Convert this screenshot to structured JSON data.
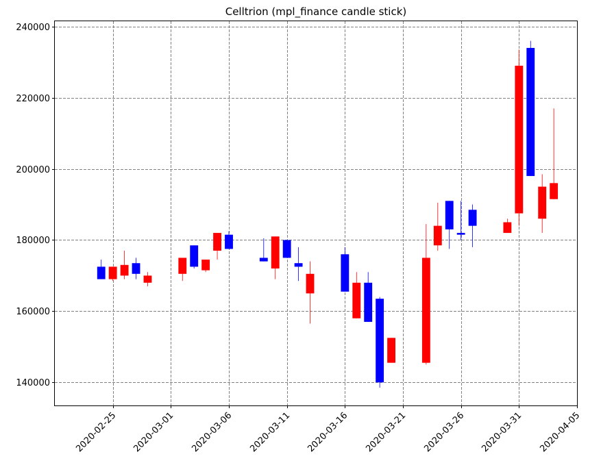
{
  "chart_data": {
    "type": "candlestick",
    "title": "Celltrion (mpl_finance candle stick)",
    "xlabel": "",
    "ylabel": "",
    "x_ticks": [
      "2020-02-25",
      "2020-03-01",
      "2020-03-06",
      "2020-03-11",
      "2020-03-16",
      "2020-03-21",
      "2020-03-26",
      "2020-03-31",
      "2020-04-05"
    ],
    "y_ticks": [
      "140000",
      "160000",
      "180000",
      "200000",
      "220000",
      "240000"
    ],
    "xlim": [
      "2020-02-20",
      "2020-04-05"
    ],
    "ylim": [
      133500,
      241500
    ],
    "grid": true,
    "colors": {
      "up": "#0000ff",
      "down": "#ff0000",
      "grid": "#808080"
    },
    "candles": [
      {
        "date": "2020-02-24",
        "open": 169000,
        "high": 174500,
        "low": 169000,
        "close": 172500
      },
      {
        "date": "2020-02-25",
        "open": 172500,
        "high": 172500,
        "low": 168500,
        "close": 169000
      },
      {
        "date": "2020-02-26",
        "open": 173000,
        "high": 177000,
        "low": 169000,
        "close": 170000
      },
      {
        "date": "2020-02-27",
        "open": 170500,
        "high": 175000,
        "low": 169000,
        "close": 173500
      },
      {
        "date": "2020-02-28",
        "open": 170000,
        "high": 171000,
        "low": 167000,
        "close": 168000
      },
      {
        "date": "2020-03-02",
        "open": 175000,
        "high": 175000,
        "low": 168500,
        "close": 170500
      },
      {
        "date": "2020-03-03",
        "open": 172500,
        "high": 178500,
        "low": 172000,
        "close": 178500
      },
      {
        "date": "2020-03-04",
        "open": 174500,
        "high": 174500,
        "low": 171000,
        "close": 171500
      },
      {
        "date": "2020-03-05",
        "open": 182000,
        "high": 182000,
        "low": 174500,
        "close": 177000
      },
      {
        "date": "2020-03-06",
        "open": 177500,
        "high": 182500,
        "low": 177500,
        "close": 181500
      },
      {
        "date": "2020-03-09",
        "open": 174000,
        "high": 180500,
        "low": 174000,
        "close": 175000
      },
      {
        "date": "2020-03-10",
        "open": 181000,
        "high": 181000,
        "low": 169000,
        "close": 172000
      },
      {
        "date": "2020-03-11",
        "open": 175000,
        "high": 180000,
        "low": 175000,
        "close": 180000
      },
      {
        "date": "2020-03-12",
        "open": 172500,
        "high": 178000,
        "low": 168500,
        "close": 173500
      },
      {
        "date": "2020-03-13",
        "open": 170500,
        "high": 174000,
        "low": 156500,
        "close": 165000
      },
      {
        "date": "2020-03-16",
        "open": 165500,
        "high": 178000,
        "low": 165500,
        "close": 176000
      },
      {
        "date": "2020-03-17",
        "open": 168000,
        "high": 171000,
        "low": 158000,
        "close": 158000
      },
      {
        "date": "2020-03-18",
        "open": 157000,
        "high": 171000,
        "low": 157000,
        "close": 168000
      },
      {
        "date": "2020-03-19",
        "open": 140000,
        "high": 164000,
        "low": 138500,
        "close": 163500
      },
      {
        "date": "2020-03-20",
        "open": 152500,
        "high": 152500,
        "low": 145500,
        "close": 145500
      },
      {
        "date": "2020-03-23",
        "open": 175000,
        "high": 184500,
        "low": 145000,
        "close": 145500
      },
      {
        "date": "2020-03-24",
        "open": 184000,
        "high": 190500,
        "low": 177000,
        "close": 178500
      },
      {
        "date": "2020-03-25",
        "open": 183000,
        "high": 191000,
        "low": 177500,
        "close": 191000
      },
      {
        "date": "2020-03-26",
        "open": 181500,
        "high": 191000,
        "low": 180000,
        "close": 182000
      },
      {
        "date": "2020-03-27",
        "open": 184000,
        "high": 190000,
        "low": 178000,
        "close": 188500
      },
      {
        "date": "2020-03-30",
        "open": 185000,
        "high": 186000,
        "low": 182000,
        "close": 182000
      },
      {
        "date": "2020-03-31",
        "open": 229000,
        "high": 233500,
        "low": 184000,
        "close": 187500
      },
      {
        "date": "2020-04-01",
        "open": 198000,
        "high": 236000,
        "low": 198000,
        "close": 234000
      },
      {
        "date": "2020-04-02",
        "open": 195000,
        "high": 198500,
        "low": 182000,
        "close": 186000
      },
      {
        "date": "2020-04-03",
        "open": 196000,
        "high": 217000,
        "low": 191500,
        "close": 191500
      }
    ]
  }
}
